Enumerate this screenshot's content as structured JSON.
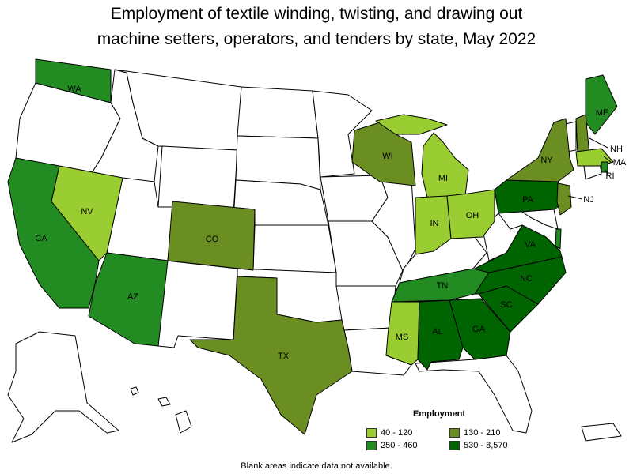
{
  "title": {
    "line1": "Employment of textile winding, twisting, and drawing out",
    "line2": "machine setters, operators, and tenders by state, May 2022"
  },
  "legend": {
    "title": "Employment",
    "items": [
      {
        "label": "40 - 120",
        "color": "#9acd32"
      },
      {
        "label": "130 - 210",
        "color": "#6b8e23"
      },
      {
        "label": "250 - 460",
        "color": "#228b22"
      },
      {
        "label": "530 - 8,570",
        "color": "#006400"
      }
    ]
  },
  "footnote": "Blank areas indicate data not available.",
  "colors": {
    "no_data": "#ffffff",
    "class_40_120": "#9acd32",
    "class_130_210": "#6b8e23",
    "class_250_460": "#228b22",
    "class_530_8570": "#006400"
  },
  "states": [
    {
      "abbr": "WA",
      "class": "250 - 460"
    },
    {
      "abbr": "CA",
      "class": "250 - 460"
    },
    {
      "abbr": "NV",
      "class": "40 - 120"
    },
    {
      "abbr": "AZ",
      "class": "250 - 460"
    },
    {
      "abbr": "CO",
      "class": "130 - 210"
    },
    {
      "abbr": "TX",
      "class": "130 - 210"
    },
    {
      "abbr": "WI",
      "class": "130 - 210"
    },
    {
      "abbr": "MI",
      "class": "40 - 120"
    },
    {
      "abbr": "IN",
      "class": "40 - 120"
    },
    {
      "abbr": "OH",
      "class": "40 - 120"
    },
    {
      "abbr": "MS",
      "class": "40 - 120"
    },
    {
      "abbr": "AL",
      "class": "530 - 8,570"
    },
    {
      "abbr": "GA",
      "class": "530 - 8,570"
    },
    {
      "abbr": "SC",
      "class": "530 - 8,570"
    },
    {
      "abbr": "NC",
      "class": "530 - 8,570"
    },
    {
      "abbr": "VA",
      "class": "530 - 8,570"
    },
    {
      "abbr": "TN",
      "class": "250 - 460"
    },
    {
      "abbr": "PA",
      "class": "530 - 8,570"
    },
    {
      "abbr": "NY",
      "class": "130 - 210"
    },
    {
      "abbr": "NJ",
      "class": "130 - 210"
    },
    {
      "abbr": "ME",
      "class": "250 - 460"
    },
    {
      "abbr": "NH",
      "class": "130 - 210"
    },
    {
      "abbr": "MA",
      "class": "40 - 120"
    },
    {
      "abbr": "RI",
      "class": "250 - 460"
    },
    {
      "abbr": "DE",
      "class": "250 - 460"
    }
  ]
}
